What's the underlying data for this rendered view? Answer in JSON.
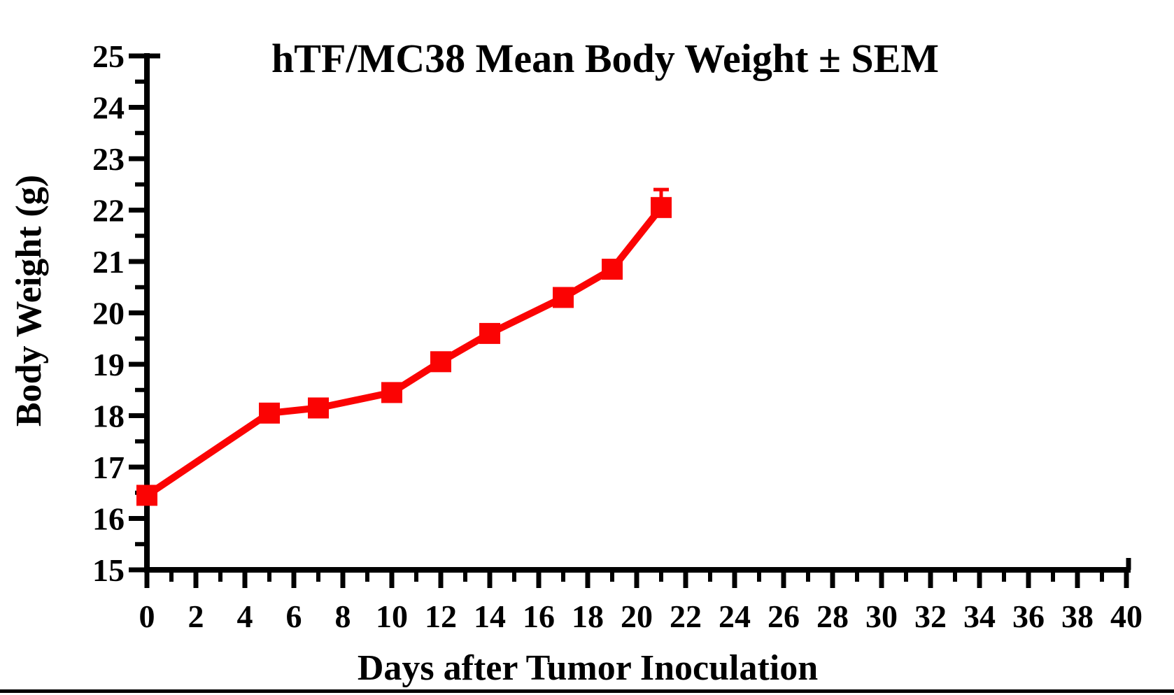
{
  "page": {
    "background": "#ffffff",
    "bottom_rule_color": "#000000"
  },
  "chart_data": {
    "type": "line",
    "title": "hTF/MC38 Mean Body Weight ± SEM",
    "xlabel": "Days after Tumor Inoculation",
    "ylabel": "Body Weight (g)",
    "series": [
      {
        "name": "hTF/MC38 mean body weight",
        "x": [
          0,
          5,
          7,
          10,
          12,
          14,
          17,
          19,
          21
        ],
        "y": [
          16.45,
          18.05,
          18.15,
          18.45,
          19.05,
          19.6,
          20.3,
          20.85,
          22.05
        ],
        "sem_upper": [
          0,
          0,
          0,
          0,
          0,
          0,
          0,
          0,
          0.35
        ],
        "color": "#fb0303",
        "marker": "square"
      }
    ],
    "xlim": [
      0,
      40
    ],
    "ylim": [
      15,
      25
    ],
    "x_tick_labels": [
      0,
      2,
      4,
      6,
      8,
      10,
      12,
      14,
      16,
      18,
      20,
      22,
      24,
      26,
      28,
      30,
      32,
      34,
      36,
      38,
      40
    ],
    "y_tick_labels": [
      15,
      16,
      17,
      18,
      19,
      20,
      21,
      22,
      23,
      24,
      25
    ],
    "x_minor_step": 1,
    "y_minor_step": 0.5,
    "grid": false,
    "legend": "none",
    "axis_color": "#000000",
    "text_color": "#000000"
  }
}
